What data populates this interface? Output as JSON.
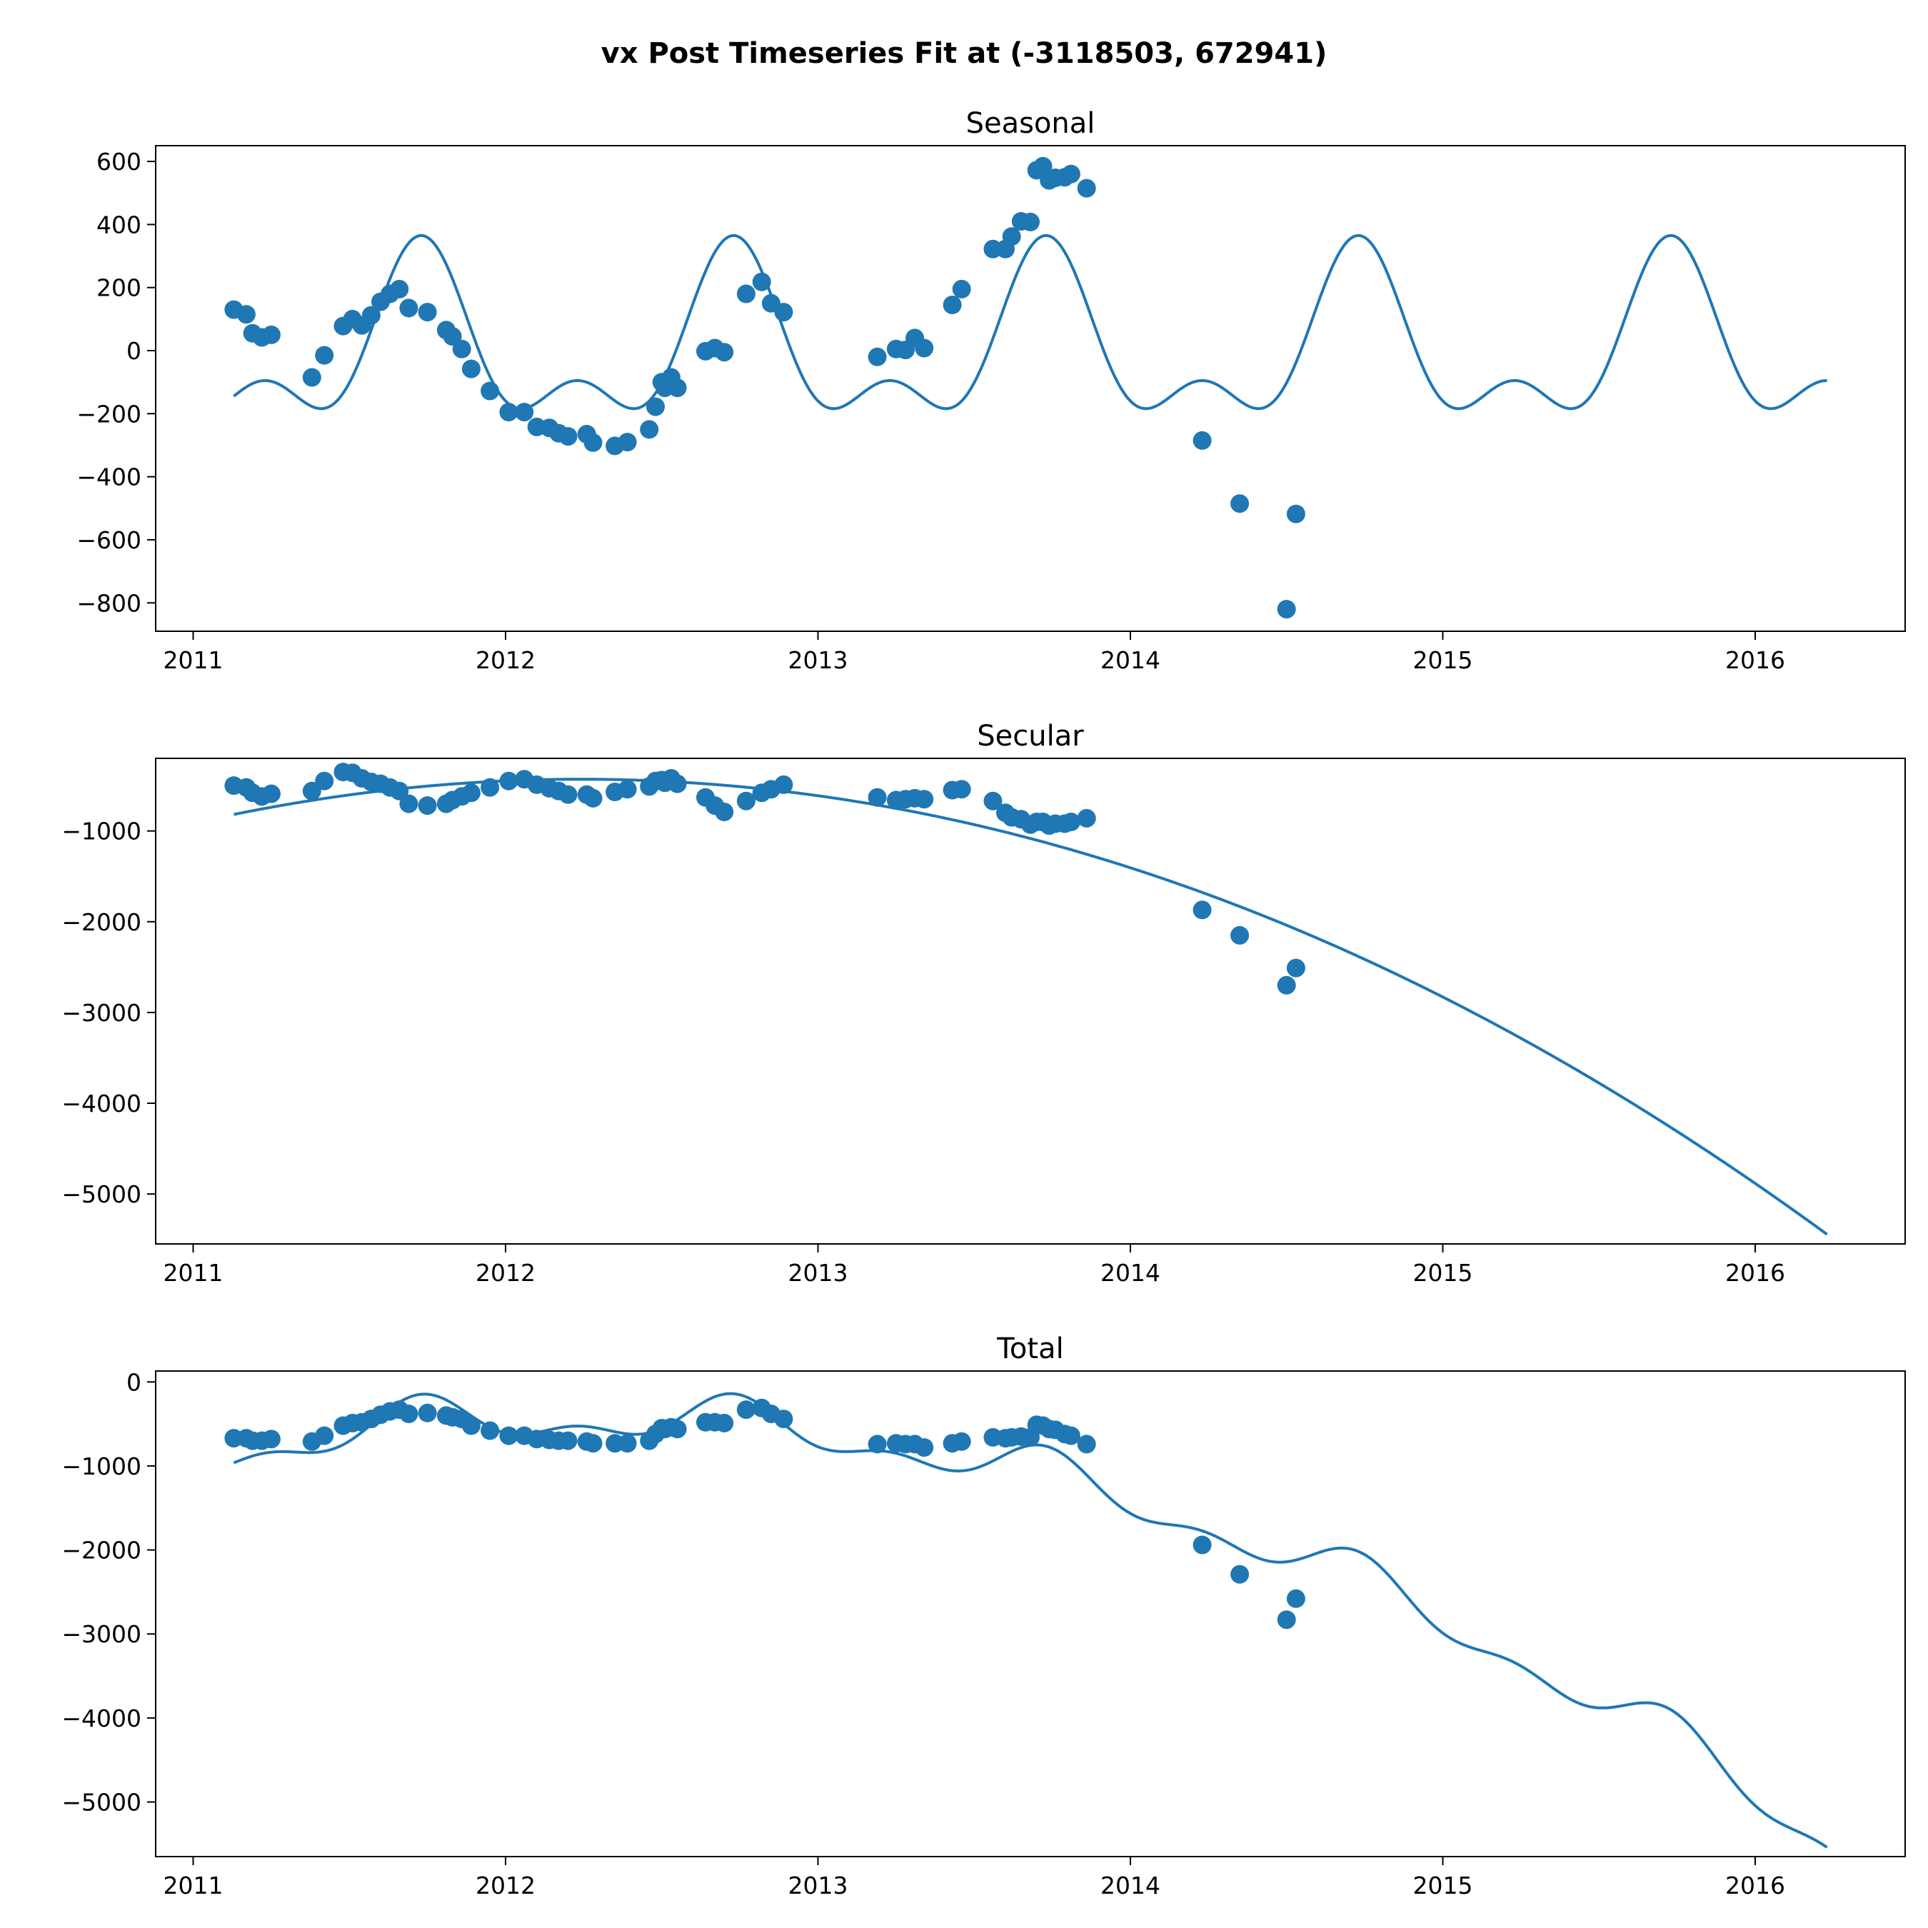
{
  "figure": {
    "title": "vx Post Timeseries Fit at (-3118503, 672941)",
    "color": "#1f77b4"
  },
  "chart_data": [
    {
      "type": "line",
      "title": "Seasonal",
      "xlabel": "",
      "ylabel": "",
      "xlim": [
        2010.88,
        2016.48
      ],
      "ylim": [
        -890,
        650
      ],
      "xticks": [
        2011,
        2012,
        2013,
        2014,
        2015,
        2016
      ],
      "xtick_labels": [
        "2011",
        "2012",
        "2013",
        "2014",
        "2015",
        "2016"
      ],
      "yticks": [
        600,
        400,
        200,
        0,
        -200,
        -400,
        -600,
        -800
      ],
      "ytick_labels": [
        "600",
        "400",
        "200",
        "0",
        "−200",
        "−400",
        "−600",
        "−800"
      ],
      "grid": false,
      "fit_line": {
        "model": "seasonal",
        "x_range": [
          2011.13,
          2016.23
        ],
        "annual_amplitude": 230,
        "annual_phase": 2011.73,
        "semiannual_amplitude": 135,
        "semiannual_phase": 2011.73
      },
      "observations": [
        [
          2011.13,
          130
        ],
        [
          2011.17,
          115
        ],
        [
          2011.19,
          55
        ],
        [
          2011.22,
          42
        ],
        [
          2011.25,
          50
        ],
        [
          2011.38,
          -85
        ],
        [
          2011.42,
          -15
        ],
        [
          2011.48,
          78
        ],
        [
          2011.51,
          100
        ],
        [
          2011.54,
          80
        ],
        [
          2011.57,
          112
        ],
        [
          2011.6,
          155
        ],
        [
          2011.63,
          180
        ],
        [
          2011.66,
          195
        ],
        [
          2011.69,
          135
        ],
        [
          2011.75,
          122
        ],
        [
          2011.81,
          65
        ],
        [
          2011.83,
          45
        ],
        [
          2011.86,
          5
        ],
        [
          2011.89,
          -58
        ],
        [
          2011.95,
          -128
        ],
        [
          2012.01,
          -195
        ],
        [
          2012.06,
          -195
        ],
        [
          2012.1,
          -242
        ],
        [
          2012.14,
          -245
        ],
        [
          2012.17,
          -262
        ],
        [
          2012.2,
          -272
        ],
        [
          2012.26,
          -265
        ],
        [
          2012.28,
          -292
        ],
        [
          2012.35,
          -302
        ],
        [
          2012.39,
          -290
        ],
        [
          2012.46,
          -250
        ],
        [
          2012.48,
          -178
        ],
        [
          2012.5,
          -100
        ],
        [
          2012.51,
          -118
        ],
        [
          2012.53,
          -85
        ],
        [
          2012.55,
          -118
        ],
        [
          2012.64,
          -2
        ],
        [
          2012.67,
          8
        ],
        [
          2012.7,
          -5
        ],
        [
          2012.77,
          180
        ],
        [
          2012.82,
          218
        ],
        [
          2012.85,
          150
        ],
        [
          2012.89,
          122
        ],
        [
          2013.19,
          -20
        ],
        [
          2013.25,
          5
        ],
        [
          2013.28,
          2
        ],
        [
          2013.31,
          40
        ],
        [
          2013.34,
          8
        ],
        [
          2013.43,
          145
        ],
        [
          2013.46,
          195
        ],
        [
          2013.56,
          322
        ],
        [
          2013.6,
          322
        ],
        [
          2013.62,
          362
        ],
        [
          2013.65,
          410
        ],
        [
          2013.68,
          408
        ],
        [
          2013.7,
          572
        ],
        [
          2013.72,
          585
        ],
        [
          2013.74,
          540
        ],
        [
          2013.76,
          548
        ],
        [
          2013.79,
          550
        ],
        [
          2013.81,
          560
        ],
        [
          2013.86,
          515
        ],
        [
          2014.23,
          -285
        ],
        [
          2014.35,
          -485
        ],
        [
          2014.5,
          -820
        ],
        [
          2014.53,
          -518
        ]
      ]
    },
    {
      "type": "line",
      "title": "Secular",
      "xlabel": "",
      "ylabel": "",
      "xlim": [
        2010.88,
        2016.48
      ],
      "ylim": [
        -5550,
        -200
      ],
      "xticks": [
        2011,
        2012,
        2013,
        2014,
        2015,
        2016
      ],
      "xtick_labels": [
        "2011",
        "2012",
        "2013",
        "2014",
        "2015",
        "2016"
      ],
      "yticks": [
        -1000,
        -2000,
        -3000,
        -4000,
        -5000
      ],
      "ytick_labels": [
        "−1000",
        "−2000",
        "−3000",
        "−4000",
        "−5000"
      ],
      "grid": false,
      "fit_line": {
        "model": "quadratic",
        "x_range": [
          2011.13,
          2016.23
        ],
        "vertex_x": 2012.24,
        "vertex_y": -430,
        "curvature": -315
      },
      "observations": [
        [
          2011.13,
          -500
        ],
        [
          2011.17,
          -520
        ],
        [
          2011.19,
          -580
        ],
        [
          2011.22,
          -620
        ],
        [
          2011.25,
          -590
        ],
        [
          2011.38,
          -560
        ],
        [
          2011.42,
          -450
        ],
        [
          2011.48,
          -350
        ],
        [
          2011.51,
          -360
        ],
        [
          2011.54,
          -420
        ],
        [
          2011.57,
          -460
        ],
        [
          2011.6,
          -480
        ],
        [
          2011.63,
          -520
        ],
        [
          2011.66,
          -560
        ],
        [
          2011.69,
          -700
        ],
        [
          2011.75,
          -720
        ],
        [
          2011.81,
          -700
        ],
        [
          2011.83,
          -660
        ],
        [
          2011.86,
          -620
        ],
        [
          2011.89,
          -580
        ],
        [
          2011.95,
          -520
        ],
        [
          2012.01,
          -450
        ],
        [
          2012.06,
          -430
        ],
        [
          2012.1,
          -490
        ],
        [
          2012.14,
          -530
        ],
        [
          2012.17,
          -560
        ],
        [
          2012.2,
          -600
        ],
        [
          2012.26,
          -600
        ],
        [
          2012.28,
          -640
        ],
        [
          2012.35,
          -570
        ],
        [
          2012.39,
          -540
        ],
        [
          2012.46,
          -510
        ],
        [
          2012.48,
          -450
        ],
        [
          2012.5,
          -440
        ],
        [
          2012.51,
          -470
        ],
        [
          2012.53,
          -420
        ],
        [
          2012.55,
          -480
        ],
        [
          2012.64,
          -630
        ],
        [
          2012.67,
          -720
        ],
        [
          2012.7,
          -790
        ],
        [
          2012.77,
          -670
        ],
        [
          2012.82,
          -580
        ],
        [
          2012.85,
          -540
        ],
        [
          2012.89,
          -490
        ],
        [
          2013.19,
          -630
        ],
        [
          2013.25,
          -660
        ],
        [
          2013.28,
          -650
        ],
        [
          2013.31,
          -640
        ],
        [
          2013.34,
          -650
        ],
        [
          2013.43,
          -550
        ],
        [
          2013.46,
          -540
        ],
        [
          2013.56,
          -670
        ],
        [
          2013.6,
          -800
        ],
        [
          2013.62,
          -850
        ],
        [
          2013.65,
          -870
        ],
        [
          2013.68,
          -930
        ],
        [
          2013.7,
          -900
        ],
        [
          2013.72,
          -900
        ],
        [
          2013.74,
          -940
        ],
        [
          2013.76,
          -920
        ],
        [
          2013.79,
          -920
        ],
        [
          2013.81,
          -900
        ],
        [
          2013.86,
          -860
        ],
        [
          2014.23,
          -1870
        ],
        [
          2014.35,
          -2150
        ],
        [
          2014.5,
          -2700
        ],
        [
          2014.53,
          -2510
        ]
      ]
    },
    {
      "type": "line",
      "title": "Total",
      "xlabel": "",
      "ylabel": "",
      "xlim": [
        2010.88,
        2016.48
      ],
      "ylim": [
        -5650,
        130
      ],
      "xticks": [
        2011,
        2012,
        2013,
        2014,
        2015,
        2016
      ],
      "xtick_labels": [
        "2011",
        "2012",
        "2013",
        "2014",
        "2015",
        "2016"
      ],
      "yticks": [
        0,
        -1000,
        -2000,
        -3000,
        -4000,
        -5000
      ],
      "ytick_labels": [
        "0",
        "−1000",
        "−2000",
        "−3000",
        "−4000",
        "−5000"
      ],
      "grid": false,
      "fit_line": {
        "model": "seasonal+quadratic",
        "x_range": [
          2011.13,
          2016.23
        ]
      },
      "observations": [
        [
          2011.13,
          -670
        ],
        [
          2011.17,
          -670
        ],
        [
          2011.19,
          -700
        ],
        [
          2011.22,
          -700
        ],
        [
          2011.25,
          -680
        ],
        [
          2011.38,
          -710
        ],
        [
          2011.42,
          -640
        ],
        [
          2011.48,
          -520
        ],
        [
          2011.51,
          -490
        ],
        [
          2011.54,
          -480
        ],
        [
          2011.57,
          -440
        ],
        [
          2011.6,
          -390
        ],
        [
          2011.63,
          -350
        ],
        [
          2011.66,
          -330
        ],
        [
          2011.69,
          -380
        ],
        [
          2011.75,
          -370
        ],
        [
          2011.81,
          -400
        ],
        [
          2011.83,
          -420
        ],
        [
          2011.86,
          -440
        ],
        [
          2011.89,
          -520
        ],
        [
          2011.95,
          -580
        ],
        [
          2012.01,
          -640
        ],
        [
          2012.06,
          -640
        ],
        [
          2012.1,
          -680
        ],
        [
          2012.14,
          -690
        ],
        [
          2012.17,
          -700
        ],
        [
          2012.2,
          -700
        ],
        [
          2012.26,
          -710
        ],
        [
          2012.28,
          -730
        ],
        [
          2012.35,
          -730
        ],
        [
          2012.39,
          -730
        ],
        [
          2012.46,
          -700
        ],
        [
          2012.48,
          -620
        ],
        [
          2012.5,
          -550
        ],
        [
          2012.51,
          -560
        ],
        [
          2012.53,
          -540
        ],
        [
          2012.55,
          -560
        ],
        [
          2012.64,
          -480
        ],
        [
          2012.67,
          -480
        ],
        [
          2012.7,
          -490
        ],
        [
          2012.77,
          -330
        ],
        [
          2012.82,
          -310
        ],
        [
          2012.85,
          -380
        ],
        [
          2012.89,
          -440
        ],
        [
          2013.19,
          -740
        ],
        [
          2013.25,
          -730
        ],
        [
          2013.28,
          -740
        ],
        [
          2013.31,
          -740
        ],
        [
          2013.34,
          -780
        ],
        [
          2013.43,
          -730
        ],
        [
          2013.46,
          -710
        ],
        [
          2013.56,
          -660
        ],
        [
          2013.6,
          -670
        ],
        [
          2013.62,
          -660
        ],
        [
          2013.65,
          -650
        ],
        [
          2013.68,
          -660
        ],
        [
          2013.7,
          -510
        ],
        [
          2013.72,
          -520
        ],
        [
          2013.74,
          -560
        ],
        [
          2013.76,
          -570
        ],
        [
          2013.79,
          -620
        ],
        [
          2013.81,
          -640
        ],
        [
          2013.86,
          -740
        ],
        [
          2014.23,
          -1940
        ],
        [
          2014.35,
          -2290
        ],
        [
          2014.5,
          -2830
        ],
        [
          2014.53,
          -2580
        ]
      ]
    }
  ]
}
